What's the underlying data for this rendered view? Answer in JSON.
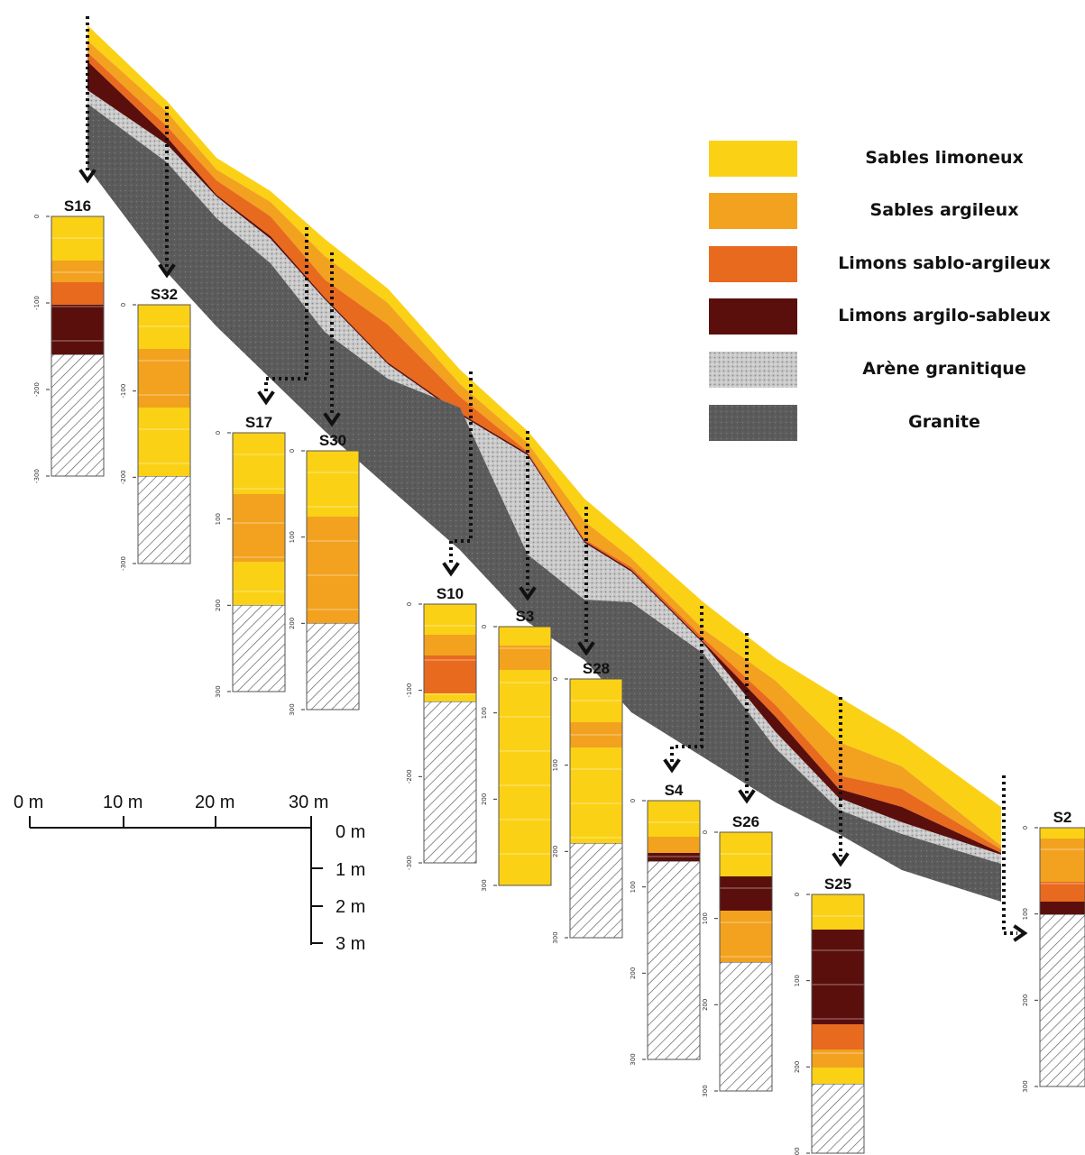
{
  "legend": [
    {
      "label": "Sables limoneux",
      "color": "#FBD116"
    },
    {
      "label": "Sables argileux",
      "color": "#F2A21F"
    },
    {
      "label": "Limons sablo-argileux",
      "color": "#E86A1F"
    },
    {
      "label": "Limons argilo-sableux",
      "color": "#5A0F0C"
    },
    {
      "label": "Arène granitique",
      "color": "#C8C8C8"
    },
    {
      "label": "Granite",
      "color": "#5E5E5E"
    }
  ],
  "scale": {
    "horizontal_labels": [
      "0 m",
      "10 m",
      "20 m",
      "30 m"
    ],
    "vertical_labels": [
      "0 m",
      "1 m",
      "2 m",
      "3 m"
    ]
  },
  "depth_tick_labels": [
    "0",
    "-100",
    "-200",
    "-300"
  ],
  "depth_tick_labels_alt": [
    "0",
    "100",
    "200",
    "300"
  ],
  "profiles": [
    {
      "id": "S16",
      "layers": [
        "sl",
        "sa",
        "lsa",
        "las"
      ]
    },
    {
      "id": "S32",
      "layers": [
        "sl",
        "sa",
        "sl"
      ]
    },
    {
      "id": "S17",
      "layers": [
        "sl",
        "sa",
        "sl"
      ]
    },
    {
      "id": "S30",
      "layers": [
        "sl",
        "sa"
      ]
    },
    {
      "id": "S10",
      "layers": [
        "sl",
        "sa",
        "lsa",
        "sl"
      ]
    },
    {
      "id": "S3",
      "layers": [
        "sl",
        "sa",
        "sl"
      ]
    },
    {
      "id": "S28",
      "layers": [
        "sl",
        "sa",
        "sl"
      ]
    },
    {
      "id": "S4",
      "layers": [
        "sl",
        "sa",
        "las"
      ]
    },
    {
      "id": "S26",
      "layers": [
        "sl",
        "las",
        "sa"
      ]
    },
    {
      "id": "S25",
      "layers": [
        "sl",
        "las",
        "lsa",
        "sa",
        "sl"
      ]
    },
    {
      "id": "S2",
      "layers": [
        "sl",
        "sa",
        "lsa",
        "las"
      ]
    }
  ]
}
